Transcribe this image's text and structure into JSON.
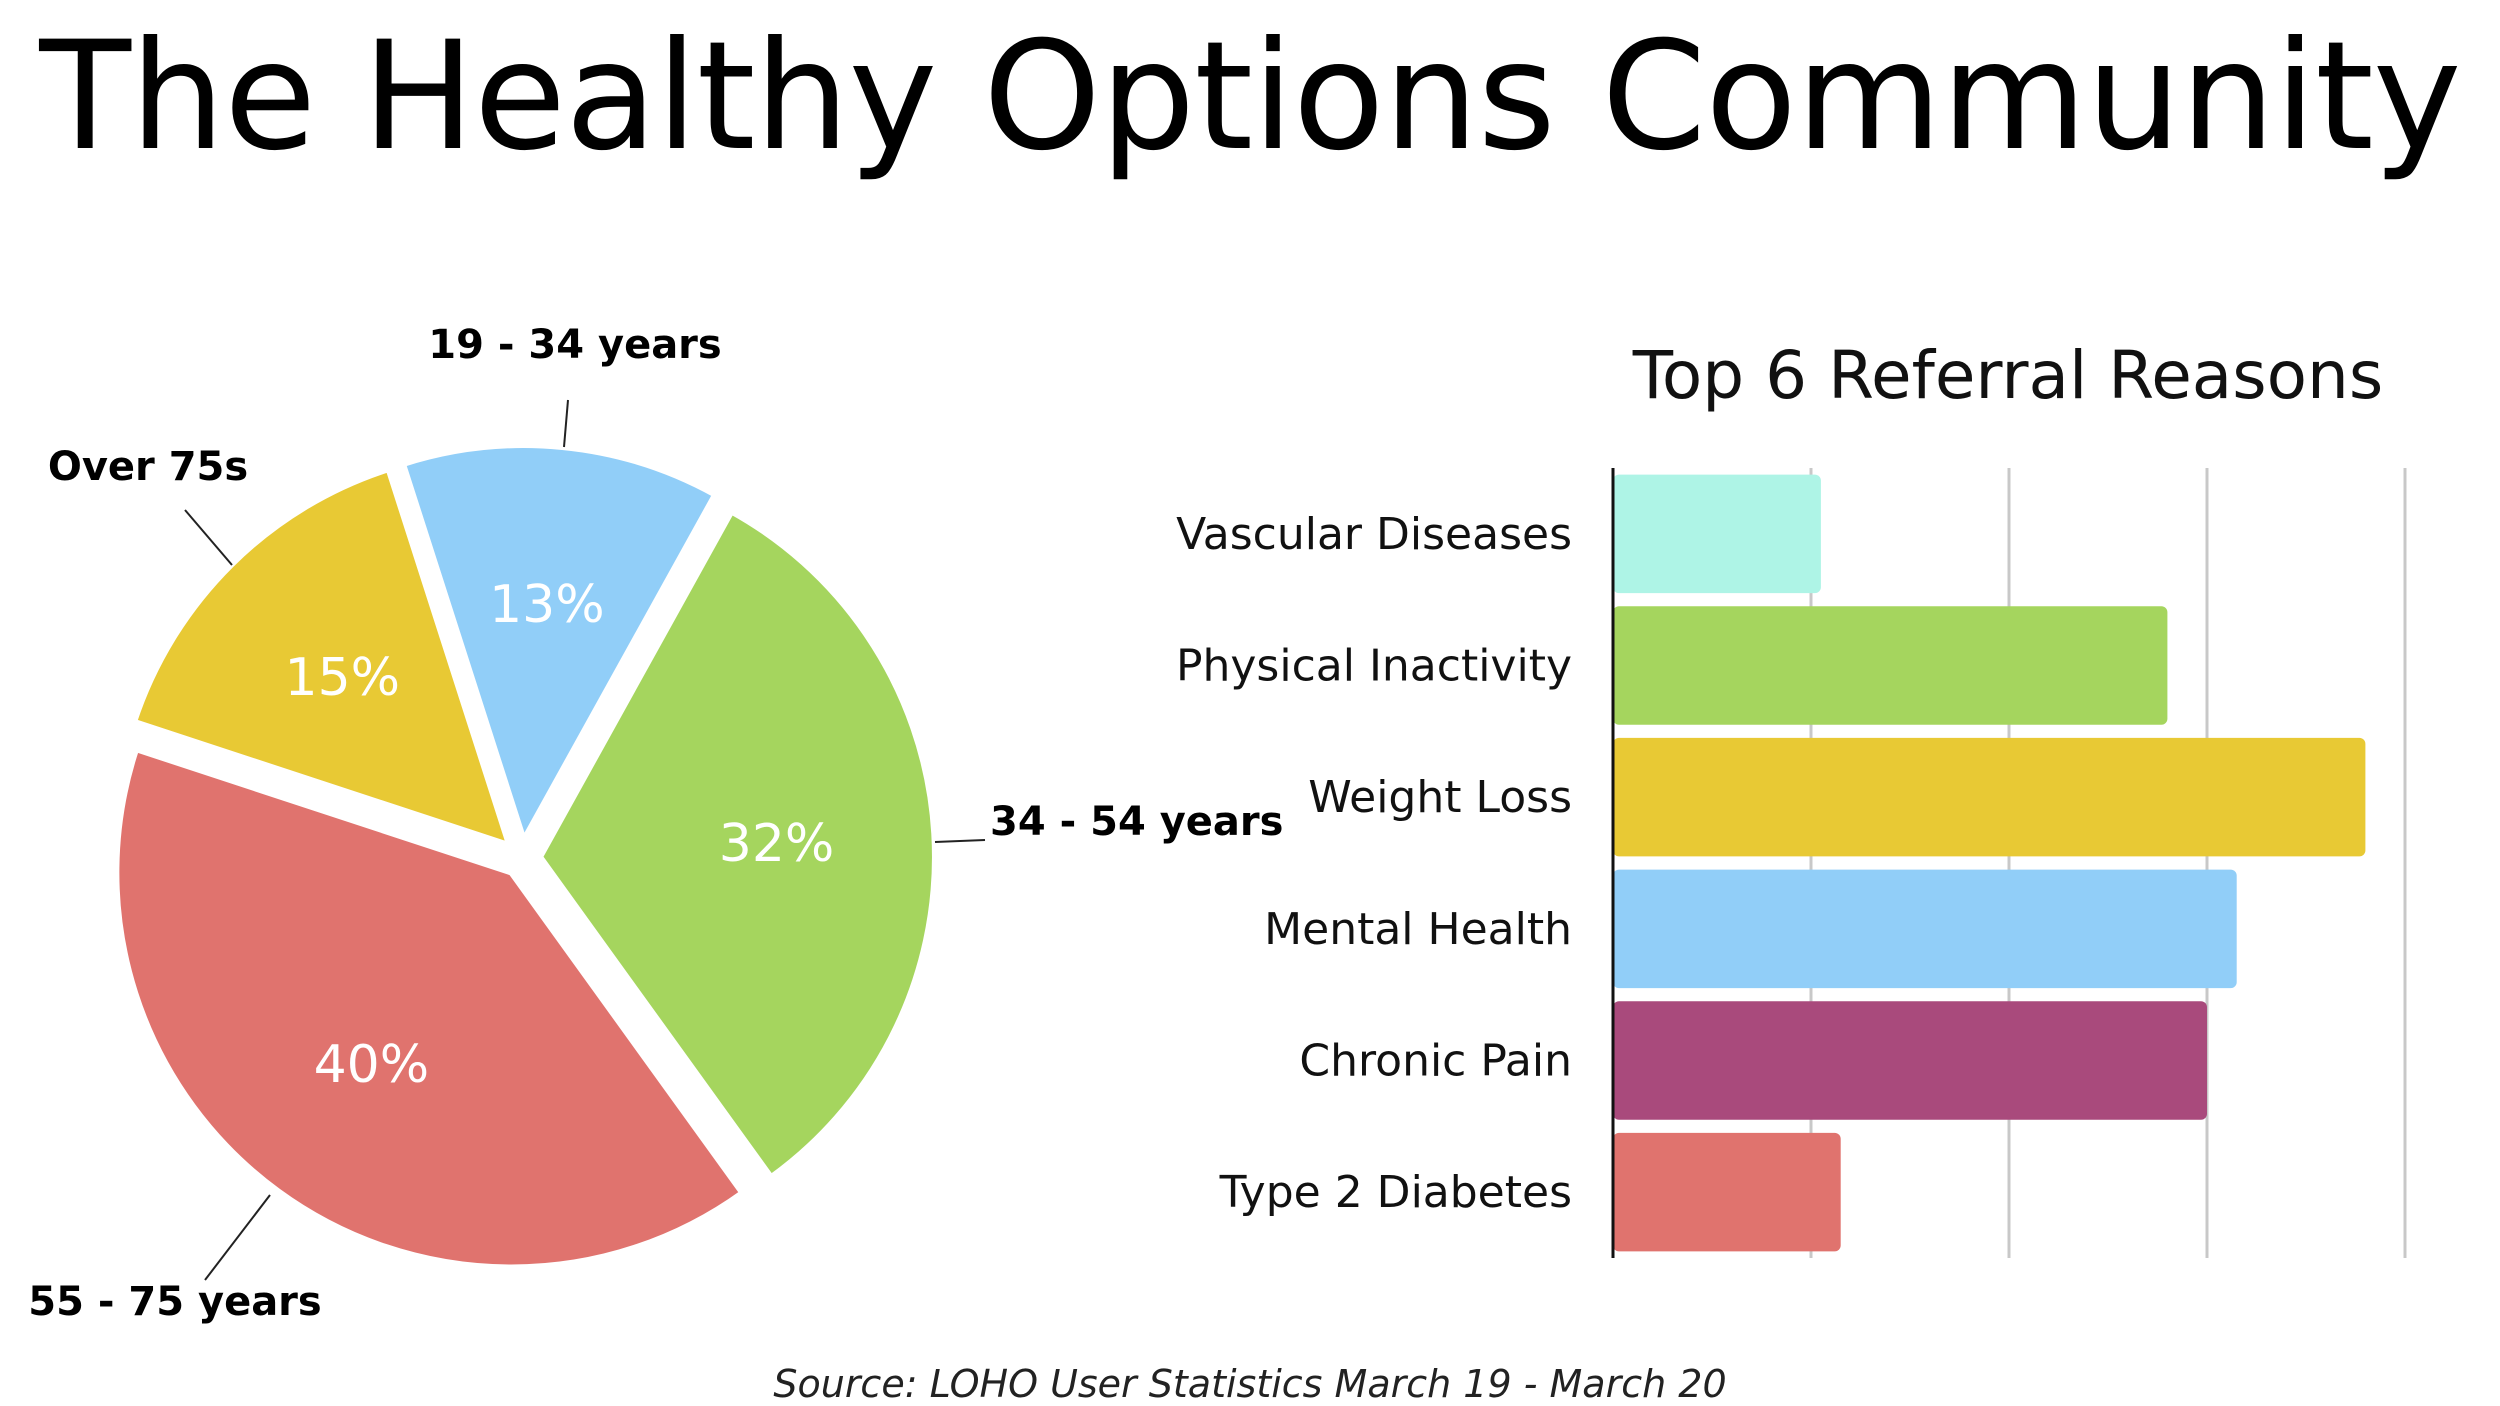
{
  "page": {
    "title": "The Healthy Options Community",
    "source": "Source: LOHO User Statistics March 19 - March 20"
  },
  "chart_data": [
    {
      "type": "pie",
      "title": "",
      "slices": [
        {
          "label": "34 - 54 years",
          "value": 32,
          "value_label": "32%",
          "color": "#a5d55e"
        },
        {
          "label": "55 - 75 years",
          "value": 40,
          "value_label": "40%",
          "color": "#e0736e"
        },
        {
          "label": "Over 75s",
          "value": 15,
          "value_label": "15%",
          "color": "#e8c934"
        },
        {
          "label": "19 - 34 years",
          "value": 13,
          "value_label": "13%",
          "color": "#91cef8"
        }
      ]
    },
    {
      "type": "bar",
      "orientation": "horizontal",
      "title": "Top 6 Referral Reasons",
      "categories": [
        "Vascular Diseases",
        "Physical Inactivity",
        "Weight Loss",
        "Mental Health",
        "Chronic Pain",
        "Type 2 Diabetes"
      ],
      "values": [
        1.05,
        2.8,
        3.8,
        3.15,
        3.0,
        1.15
      ],
      "colors": [
        "#aef4e6",
        "#a5d55e",
        "#e8c934",
        "#91cef8",
        "#a94a7c",
        "#e0736e"
      ],
      "xlim": [
        0,
        4
      ],
      "grid": true,
      "tick_labels_shown": false
    }
  ]
}
